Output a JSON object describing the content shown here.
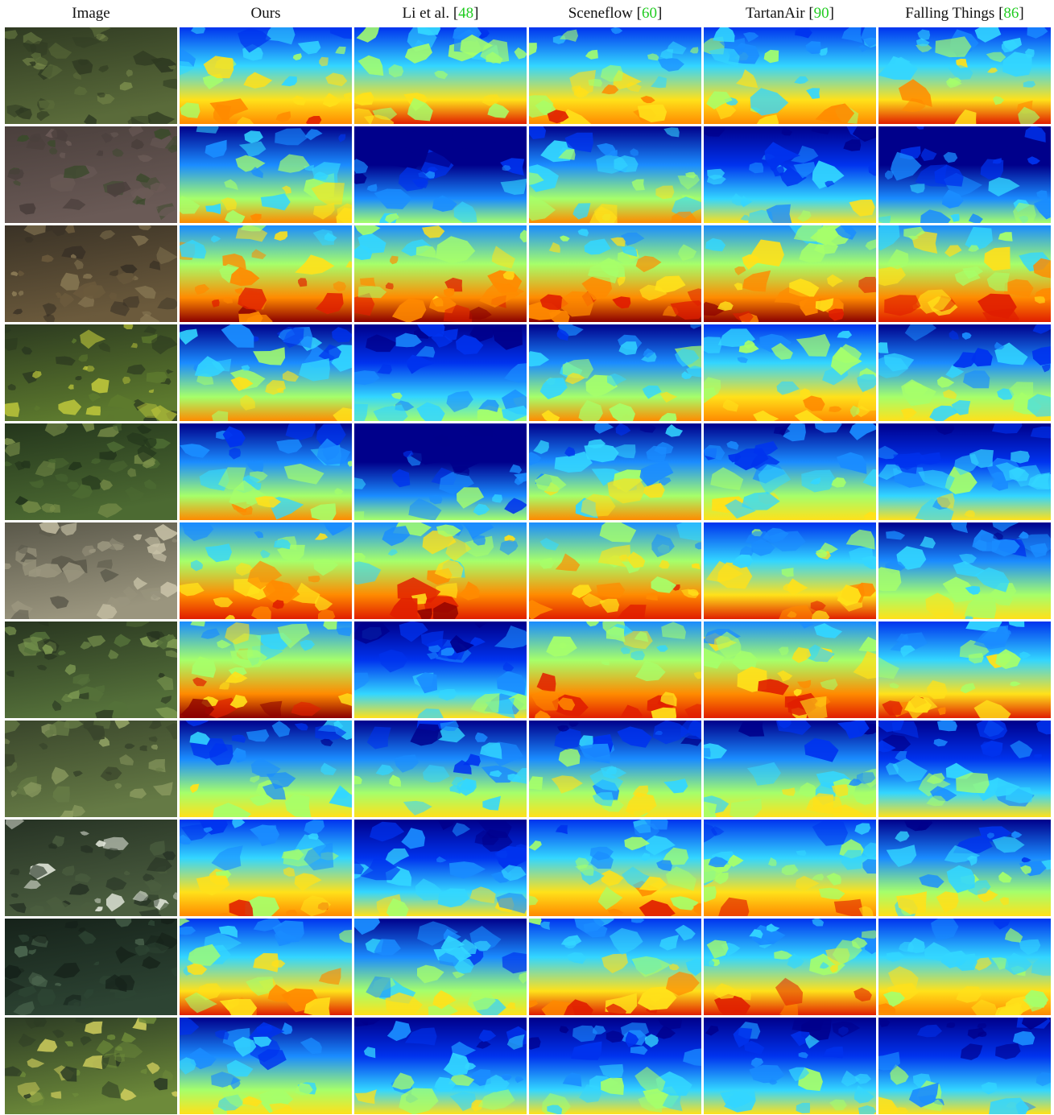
{
  "columns": [
    {
      "label": "Image",
      "cite": ""
    },
    {
      "label": "Ours",
      "cite": ""
    },
    {
      "label": "Li et al.",
      "cite": "48"
    },
    {
      "label": "Sceneflow",
      "cite": "60"
    },
    {
      "label": "TartanAir",
      "cite": "90"
    },
    {
      "label": "Falling Things",
      "cite": "86"
    }
  ],
  "colors": {
    "citation": "#22cc22",
    "colormap": [
      "#00008b",
      "#0033ee",
      "#1a8cff",
      "#33d6ff",
      "#a6ff6a",
      "#ffe11a",
      "#ff8a00",
      "#e01e00",
      "#8b0000"
    ]
  },
  "rows": [
    {
      "scene": "forest-floor-vines",
      "photo": [
        "#2f3a22",
        "#5a6b3a",
        "#7d8f4e"
      ],
      "maps": [
        0.45,
        0.48,
        0.46,
        0.42,
        0.5
      ]
    },
    {
      "scene": "japanese-maple",
      "photo": [
        "#4a3f3c",
        "#6a5a56",
        "#3b4a2c"
      ],
      "maps": [
        0.38,
        0.12,
        0.4,
        0.22,
        0.15
      ]
    },
    {
      "scene": "fallen-branches",
      "photo": [
        "#3a3226",
        "#6b5a3c",
        "#8a7a55"
      ],
      "maps": [
        0.62,
        0.6,
        0.6,
        0.63,
        0.58
      ]
    },
    {
      "scene": "yellow-leaf-shrub",
      "photo": [
        "#2c3a20",
        "#5d7a2e",
        "#b8c23a"
      ],
      "maps": [
        0.4,
        0.18,
        0.38,
        0.42,
        0.32
      ]
    },
    {
      "scene": "fern",
      "photo": [
        "#24361c",
        "#4c6a32",
        "#7a8f4a"
      ],
      "maps": [
        0.36,
        0.14,
        0.34,
        0.3,
        0.26
      ]
    },
    {
      "scene": "pebble-bed",
      "photo": [
        "#5a584a",
        "#9a957e",
        "#c9c3a8"
      ],
      "maps": [
        0.55,
        0.55,
        0.55,
        0.52,
        0.3
      ]
    },
    {
      "scene": "tall-grass",
      "photo": [
        "#283520",
        "#55713a",
        "#7e9a52"
      ],
      "maps": [
        0.6,
        0.22,
        0.56,
        0.55,
        0.5
      ]
    },
    {
      "scene": "bush-with-branch",
      "photo": [
        "#39452b",
        "#657a45",
        "#8e9e62"
      ],
      "maps": [
        0.32,
        0.3,
        0.33,
        0.3,
        0.28
      ]
    },
    {
      "scene": "white-flowers",
      "photo": [
        "#263224",
        "#4b5e3f",
        "#e8ece0"
      ],
      "maps": [
        0.45,
        0.25,
        0.42,
        0.44,
        0.3
      ]
    },
    {
      "scene": "dark-shrub",
      "photo": [
        "#16221a",
        "#2d4433",
        "#4f6a52"
      ],
      "maps": [
        0.52,
        0.3,
        0.5,
        0.52,
        0.46
      ]
    },
    {
      "scene": "yellow-leaves-grass",
      "photo": [
        "#2c3b24",
        "#6d8a3a",
        "#c8c85a"
      ],
      "maps": [
        0.3,
        0.28,
        0.26,
        0.28,
        0.22
      ]
    }
  ]
}
